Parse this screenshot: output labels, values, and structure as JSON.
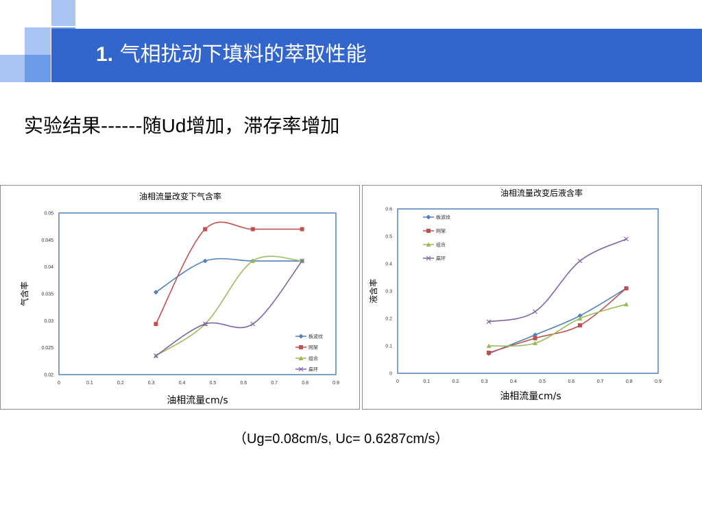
{
  "slide": {
    "title_num": "1.",
    "title_text": "气相扰动下填料的萃取性能",
    "subtitle_a": "实验结果------随",
    "subtitle_b": "Ud",
    "subtitle_c": "增加，滞存率增加",
    "caption": "（Ug=0.08cm/s, Uc= 0.6287cm/s）"
  },
  "colors": {
    "title_bar": "#3366cc",
    "square_light": "#a9c6f2",
    "square_mid": "#6e9be8",
    "plot_border": "#4f81bd"
  },
  "chart_data": [
    {
      "type": "line",
      "title": "油相流量改变下气含率",
      "xlabel": "油相流量cm/s",
      "ylabel": "气含率",
      "xlim": [
        0,
        0.9
      ],
      "ylim": [
        0.02,
        0.05
      ],
      "xticks": [
        "0",
        "0.1",
        "0.2",
        "0.3",
        "0.4",
        "0.5",
        "0.6",
        "0.7",
        "0.8",
        "0.9"
      ],
      "yticks": [
        "0.02",
        "0.025",
        "0.03",
        "0.035",
        "0.04",
        "0.045",
        "0.05"
      ],
      "grid": false,
      "legend_position": "bottom-right",
      "series": [
        {
          "name": "板波纹",
          "color": "#4f81bd",
          "marker": "diamond",
          "x": [
            0.315,
            0.475,
            0.63,
            0.79
          ],
          "y": [
            0.0353,
            0.0411,
            0.0411,
            0.0411
          ]
        },
        {
          "name": "网架",
          "color": "#c0504d",
          "marker": "square",
          "x": [
            0.315,
            0.475,
            0.63,
            0.79
          ],
          "y": [
            0.0294,
            0.047,
            0.047,
            0.047
          ]
        },
        {
          "name": "组合",
          "color": "#9bbb59",
          "marker": "triangle",
          "x": [
            0.315,
            0.475,
            0.63,
            0.79
          ],
          "y": [
            0.0235,
            0.0294,
            0.0411,
            0.0411
          ]
        },
        {
          "name": "扁环",
          "color": "#8064a2",
          "marker": "x",
          "x": [
            0.315,
            0.475,
            0.63,
            0.79
          ],
          "y": [
            0.0235,
            0.0294,
            0.0294,
            0.0411
          ]
        }
      ]
    },
    {
      "type": "line",
      "title": "油相流量改变后液含率",
      "xlabel": "油相流量cm/s",
      "ylabel": "液含率",
      "xlim": [
        0,
        0.9
      ],
      "ylim": [
        0,
        0.6
      ],
      "xticks": [
        "0",
        "0.1",
        "0.2",
        "0.3",
        "0.4",
        "0.5",
        "0.6",
        "0.7",
        "0.8",
        "0.9"
      ],
      "yticks": [
        "0",
        "0.1",
        "0.2",
        "0.3",
        "0.4",
        "0.5",
        "0.6"
      ],
      "grid": false,
      "legend_position": "top-left",
      "series": [
        {
          "name": "板波纹",
          "color": "#4f81bd",
          "marker": "diamond",
          "x": [
            0.315,
            0.475,
            0.63,
            0.79
          ],
          "y": [
            0.072,
            0.14,
            0.21,
            0.31
          ]
        },
        {
          "name": "网架",
          "color": "#c0504d",
          "marker": "square",
          "x": [
            0.315,
            0.475,
            0.63,
            0.79
          ],
          "y": [
            0.075,
            0.128,
            0.175,
            0.31
          ]
        },
        {
          "name": "组合",
          "color": "#9bbb59",
          "marker": "triangle",
          "x": [
            0.315,
            0.475,
            0.63,
            0.79
          ],
          "y": [
            0.1,
            0.11,
            0.2,
            0.252
          ]
        },
        {
          "name": "扁环",
          "color": "#8064a2",
          "marker": "x",
          "x": [
            0.315,
            0.475,
            0.63,
            0.79
          ],
          "y": [
            0.188,
            0.225,
            0.41,
            0.49
          ]
        }
      ]
    }
  ]
}
